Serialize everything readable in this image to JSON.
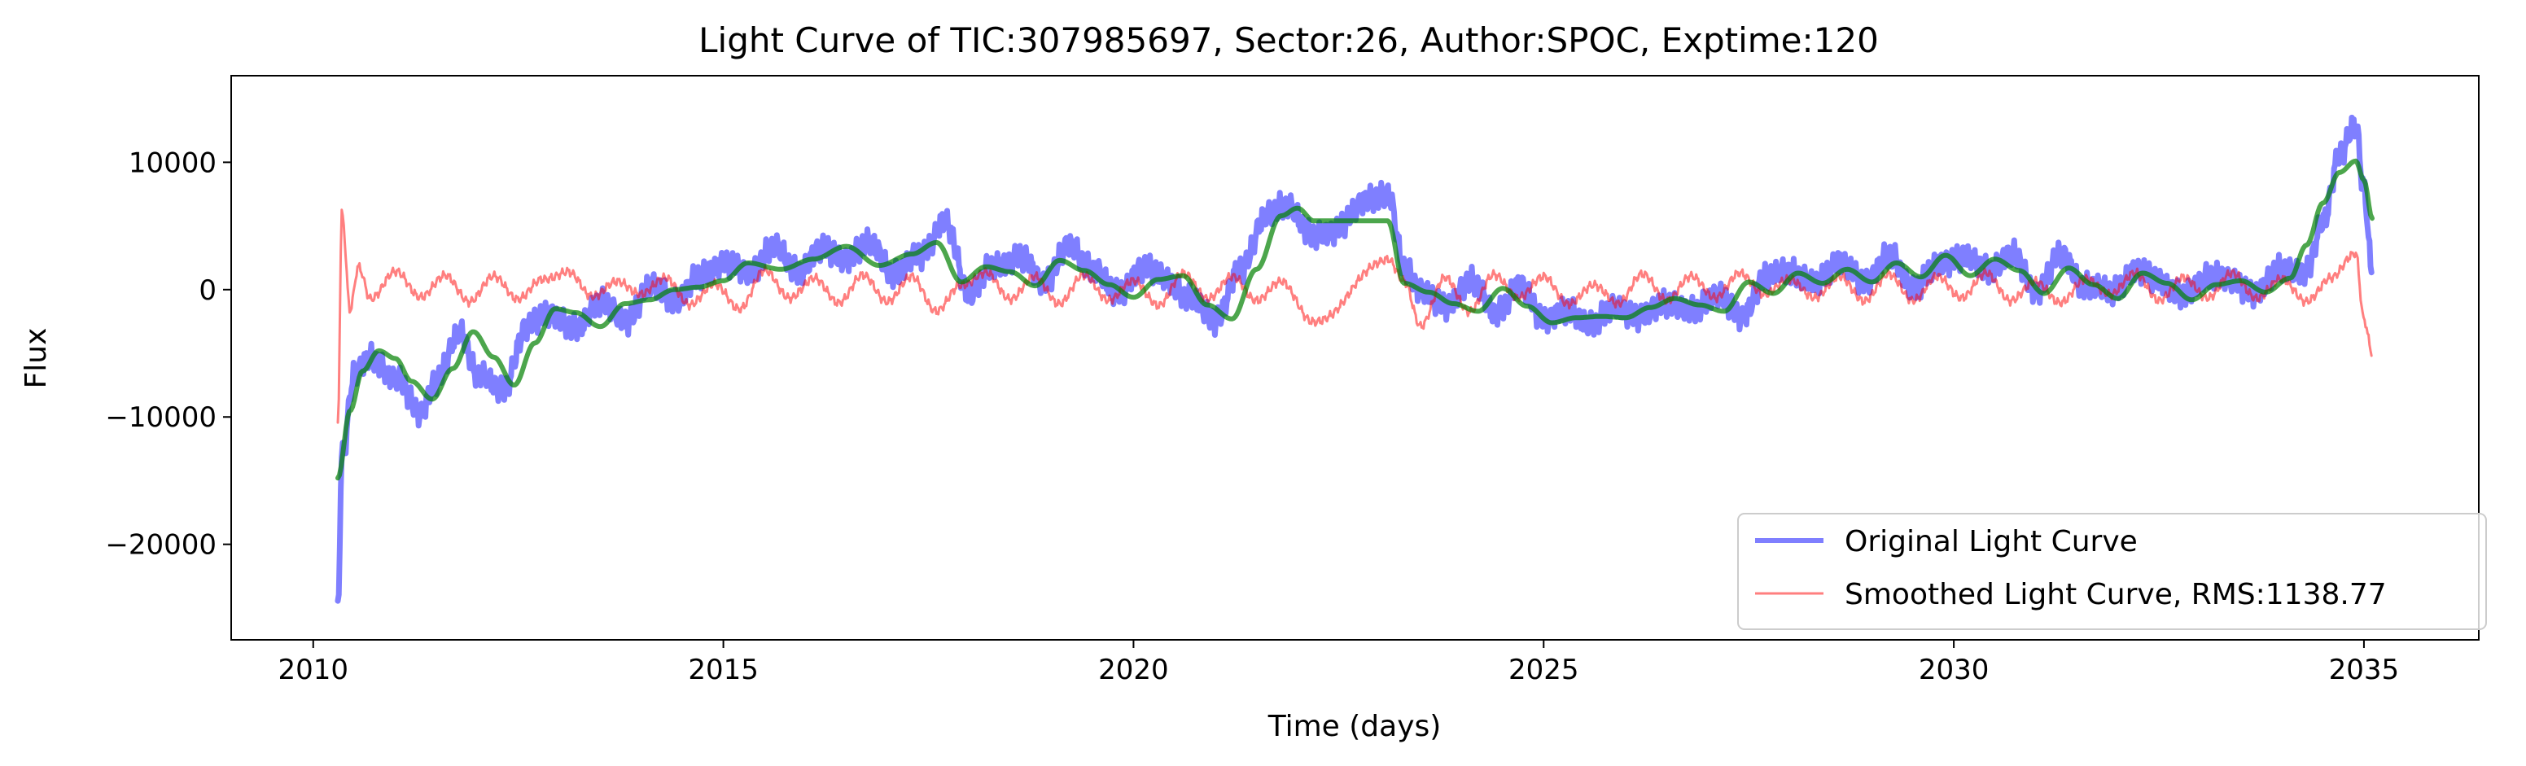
{
  "chart_data": {
    "type": "line",
    "title": "Light Curve of TIC:307985697, Sector:26, Author:SPOC, Exptime:120",
    "xlabel": "Time (days)",
    "ylabel": "Flux",
    "xlim": [
      2009.0,
      2036.4
    ],
    "ylim": [
      -27500,
      16800
    ],
    "xticks": [
      2010,
      2015,
      2020,
      2025,
      2030,
      2035
    ],
    "xtick_labels": [
      "2010",
      "2015",
      "2020",
      "2025",
      "2030",
      "2035"
    ],
    "yticks": [
      -20000,
      -10000,
      0,
      10000
    ],
    "ytick_labels": [
      "−20000",
      "−10000",
      "0",
      "10000"
    ],
    "grid": false,
    "legend_position": "lower-right",
    "gap": [
      22.2,
      23.1
    ],
    "series": [
      {
        "name": "Original Light Curve",
        "color": "#0000ff",
        "opacity": 0.5,
        "x": [
          2010.3,
          2010.35,
          2010.5,
          2010.7,
          2011.0,
          2011.3,
          2011.5,
          2011.8,
          2012.0,
          2012.3,
          2012.6,
          2012.9,
          2013.2,
          2013.5,
          2013.8,
          2014.1,
          2014.4,
          2014.7,
          2015.0,
          2015.3,
          2015.6,
          2015.9,
          2016.2,
          2016.5,
          2016.8,
          2017.1,
          2017.4,
          2017.7,
          2018.0,
          2018.3,
          2018.6,
          2018.9,
          2019.2,
          2019.5,
          2019.8,
          2020.1,
          2020.4,
          2020.7,
          2021.0,
          2021.3,
          2021.6,
          2021.9,
          2022.2,
          2023.1,
          2023.3,
          2023.5,
          2023.8,
          2024.1,
          2024.4,
          2024.7,
          2025.0,
          2025.3,
          2025.6,
          2025.9,
          2026.2,
          2026.5,
          2026.8,
          2027.1,
          2027.4,
          2027.7,
          2028.0,
          2028.3,
          2028.6,
          2028.9,
          2029.2,
          2029.5,
          2029.8,
          2030.1,
          2030.4,
          2030.7,
          2031.0,
          2031.3,
          2031.6,
          2031.9,
          2032.2,
          2032.5,
          2032.8,
          2033.1,
          2033.4,
          2033.7,
          2034.0,
          2034.3,
          2034.5,
          2034.7,
          2034.9,
          2035.0,
          2035.1
        ],
        "y": [
          -25300,
          -13000,
          -6500,
          -5500,
          -6800,
          -9800,
          -7000,
          -3400,
          -6500,
          -8000,
          -3000,
          -1800,
          -3200,
          -800,
          -2600,
          300,
          -800,
          900,
          2200,
          1200,
          3400,
          1500,
          3100,
          2500,
          3600,
          1200,
          2800,
          5200,
          -200,
          1800,
          2600,
          600,
          3300,
          1800,
          -400,
          1700,
          900,
          -800,
          -2300,
          1400,
          5800,
          6600,
          4100,
          7600,
          1600,
          100,
          -1500,
          800,
          -1800,
          200,
          -2200,
          -1800,
          -2600,
          -1400,
          -2200,
          -900,
          -1800,
          -300,
          -2200,
          900,
          1600,
          400,
          2300,
          500,
          2700,
          200,
          1800,
          2700,
          1500,
          2800,
          -100,
          2600,
          400,
          -200,
          1400,
          800,
          -600,
          1200,
          600,
          -300,
          1800,
          1200,
          5500,
          10500,
          12800,
          8000,
          1500
        ]
      },
      {
        "name": "Smoothed Light Curve, RMS:1138.77",
        "color": "#ff0000",
        "opacity": 0.5,
        "x": [
          2010.3,
          2010.35,
          2010.45,
          2010.55,
          2010.7,
          2011.0,
          2011.3,
          2011.6,
          2011.9,
          2012.2,
          2012.5,
          2012.8,
          2013.1,
          2013.4,
          2013.7,
          2014.0,
          2014.3,
          2014.6,
          2014.9,
          2015.2,
          2015.5,
          2015.8,
          2016.1,
          2016.4,
          2016.7,
          2017.0,
          2017.3,
          2017.6,
          2017.9,
          2018.2,
          2018.5,
          2018.8,
          2019.1,
          2019.4,
          2019.7,
          2020.0,
          2020.3,
          2020.6,
          2020.9,
          2021.2,
          2021.5,
          2021.8,
          2022.2,
          2023.1,
          2023.3,
          2023.5,
          2023.8,
          2024.1,
          2024.4,
          2024.7,
          2025.0,
          2025.3,
          2025.6,
          2025.9,
          2026.2,
          2026.5,
          2026.8,
          2027.1,
          2027.4,
          2027.7,
          2028.0,
          2028.3,
          2028.6,
          2028.9,
          2029.2,
          2029.5,
          2029.8,
          2030.1,
          2030.4,
          2030.7,
          2031.0,
          2031.3,
          2031.6,
          2031.9,
          2032.2,
          2032.5,
          2032.8,
          2033.1,
          2033.4,
          2033.7,
          2034.0,
          2034.3,
          2034.6,
          2034.9,
          2035.0,
          2035.1
        ],
        "y": [
          -10500,
          6000,
          -1500,
          1800,
          -800,
          1500,
          -600,
          1100,
          -900,
          1000,
          -700,
          800,
          1400,
          -500,
          600,
          -300,
          900,
          -1200,
          500,
          -1600,
          1600,
          -700,
          900,
          -1000,
          1100,
          -900,
          1000,
          -1700,
          400,
          1300,
          -700,
          1000,
          -1100,
          1200,
          -900,
          800,
          -1300,
          1300,
          -700,
          1000,
          -800,
          600,
          -2600,
          2400,
          600,
          -2800,
          900,
          -1700,
          1200,
          -700,
          1100,
          -1200,
          400,
          -1100,
          1200,
          -800,
          1000,
          -600,
          1300,
          -400,
          900,
          -700,
          1100,
          -900,
          1200,
          -800,
          1000,
          -600,
          1300,
          -900,
          700,
          -1100,
          900,
          -400,
          1300,
          -800,
          900,
          -600,
          1300,
          -700,
          900,
          -1000,
          1000,
          2800,
          -2300,
          -4900
        ]
      },
      {
        "name": "",
        "color": "#008000",
        "opacity": 0.7,
        "x": [
          2010.3,
          2010.45,
          2010.6,
          2010.8,
          2011.0,
          2011.2,
          2011.45,
          2011.7,
          2011.95,
          2012.2,
          2012.45,
          2012.7,
          2012.95,
          2013.2,
          2013.5,
          2013.8,
          2014.1,
          2014.4,
          2014.7,
          2015.0,
          2015.3,
          2015.7,
          2016.1,
          2016.5,
          2016.9,
          2017.3,
          2017.6,
          2017.9,
          2018.2,
          2018.5,
          2018.8,
          2019.1,
          2019.4,
          2019.7,
          2020.0,
          2020.3,
          2020.6,
          2020.9,
          2021.2,
          2021.5,
          2021.8,
          2022.0,
          2022.2,
          2023.1,
          2023.3,
          2023.6,
          2023.9,
          2024.2,
          2024.5,
          2024.8,
          2025.1,
          2025.4,
          2025.7,
          2026.0,
          2026.3,
          2026.6,
          2026.9,
          2027.2,
          2027.5,
          2027.8,
          2028.1,
          2028.4,
          2028.7,
          2029.0,
          2029.3,
          2029.6,
          2029.9,
          2030.2,
          2030.5,
          2030.8,
          2031.1,
          2031.4,
          2031.7,
          2032.0,
          2032.3,
          2032.6,
          2032.9,
          2033.2,
          2033.5,
          2033.8,
          2034.1,
          2034.3,
          2034.5,
          2034.7,
          2034.9,
          2035.0,
          2035.1
        ],
        "y": [
          -14800,
          -9500,
          -6400,
          -4800,
          -5400,
          -7200,
          -8600,
          -6200,
          -3300,
          -5300,
          -7500,
          -4200,
          -1500,
          -1800,
          -2900,
          -1100,
          -800,
          0,
          200,
          700,
          2100,
          1600,
          2400,
          3400,
          1900,
          2800,
          3700,
          600,
          1800,
          1400,
          300,
          2300,
          1500,
          400,
          -600,
          800,
          1100,
          -1200,
          -2300,
          1600,
          5800,
          6400,
          5400,
          5400,
          500,
          -200,
          -1100,
          -1700,
          100,
          -1300,
          -2600,
          -2200,
          -2100,
          -2200,
          -1400,
          -700,
          -1200,
          -1700,
          600,
          -300,
          1300,
          500,
          1600,
          600,
          2100,
          1000,
          2700,
          1100,
          2400,
          1500,
          -300,
          1700,
          400,
          -700,
          1300,
          500,
          -800,
          400,
          700,
          -200,
          900,
          3500,
          6800,
          9200,
          10100,
          8600,
          5600
        ]
      }
    ]
  }
}
